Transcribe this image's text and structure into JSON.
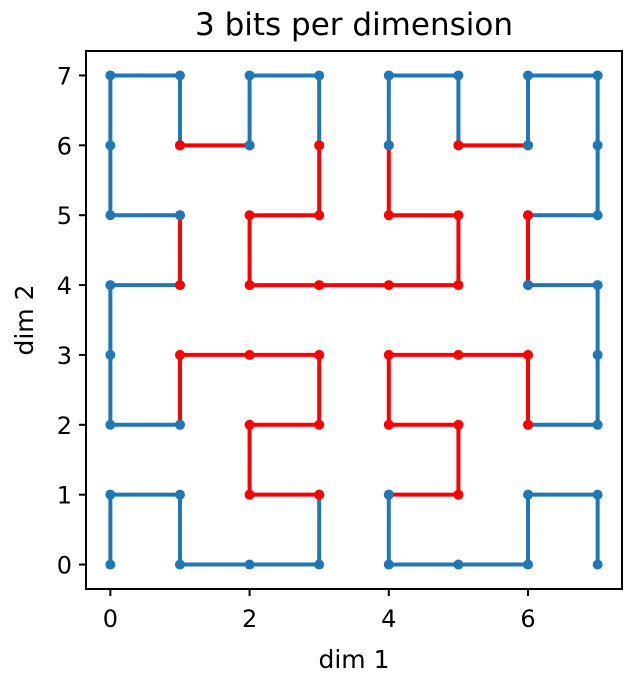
{
  "chart_data": {
    "type": "line",
    "title": "3 bits per dimension",
    "xlabel": "dim 1",
    "ylabel": "dim 2",
    "xlim": [
      -0.35,
      7.35
    ],
    "ylim": [
      -0.35,
      7.35
    ],
    "xticks": [
      0,
      2,
      4,
      6
    ],
    "yticks": [
      0,
      1,
      2,
      3,
      4,
      5,
      6,
      7
    ],
    "grid": false,
    "colors": {
      "blue": "#1f77b4",
      "red": "#ff0000"
    },
    "series": [
      {
        "color": "blue",
        "points": [
          [
            0,
            0
          ],
          [
            0,
            1
          ],
          [
            1,
            1
          ],
          [
            1,
            0
          ],
          [
            2,
            0
          ],
          [
            3,
            0
          ],
          [
            3,
            1
          ]
        ]
      },
      {
        "color": "red",
        "points": [
          [
            3,
            1
          ],
          [
            2,
            1
          ],
          [
            2,
            2
          ],
          [
            3,
            2
          ],
          [
            3,
            3
          ],
          [
            2,
            3
          ],
          [
            1,
            3
          ],
          [
            1,
            2
          ]
        ]
      },
      {
        "color": "blue",
        "points": [
          [
            1,
            2
          ],
          [
            0,
            2
          ],
          [
            0,
            3
          ],
          [
            0,
            4
          ],
          [
            1,
            4
          ]
        ]
      },
      {
        "color": "red",
        "points": [
          [
            1,
            4
          ],
          [
            1,
            5
          ]
        ]
      },
      {
        "color": "blue",
        "points": [
          [
            1,
            5
          ],
          [
            0,
            5
          ],
          [
            0,
            6
          ],
          [
            0,
            7
          ],
          [
            1,
            7
          ],
          [
            1,
            6
          ]
        ]
      },
      {
        "color": "red",
        "points": [
          [
            1,
            6
          ],
          [
            2,
            6
          ]
        ]
      },
      {
        "color": "blue",
        "points": [
          [
            2,
            6
          ],
          [
            2,
            7
          ],
          [
            3,
            7
          ],
          [
            3,
            6
          ]
        ]
      },
      {
        "color": "red",
        "points": [
          [
            3,
            6
          ],
          [
            3,
            5
          ],
          [
            2,
            5
          ],
          [
            2,
            4
          ],
          [
            3,
            4
          ],
          [
            4,
            4
          ],
          [
            5,
            4
          ],
          [
            5,
            5
          ],
          [
            4,
            5
          ],
          [
            4,
            6
          ]
        ]
      },
      {
        "color": "blue",
        "points": [
          [
            4,
            6
          ],
          [
            4,
            7
          ],
          [
            5,
            7
          ],
          [
            5,
            6
          ]
        ]
      },
      {
        "color": "red",
        "points": [
          [
            5,
            6
          ],
          [
            6,
            6
          ]
        ]
      },
      {
        "color": "blue",
        "points": [
          [
            6,
            6
          ],
          [
            6,
            7
          ],
          [
            7,
            7
          ],
          [
            7,
            6
          ],
          [
            7,
            5
          ],
          [
            6,
            5
          ]
        ]
      },
      {
        "color": "red",
        "points": [
          [
            6,
            5
          ],
          [
            6,
            4
          ]
        ]
      },
      {
        "color": "blue",
        "points": [
          [
            6,
            4
          ],
          [
            7,
            4
          ],
          [
            7,
            3
          ],
          [
            7,
            2
          ],
          [
            6,
            2
          ]
        ]
      },
      {
        "color": "red",
        "points": [
          [
            6,
            2
          ],
          [
            6,
            3
          ],
          [
            5,
            3
          ],
          [
            4,
            3
          ],
          [
            4,
            2
          ],
          [
            5,
            2
          ],
          [
            5,
            1
          ],
          [
            4,
            1
          ]
        ]
      },
      {
        "color": "blue",
        "points": [
          [
            4,
            1
          ],
          [
            4,
            0
          ],
          [
            5,
            0
          ],
          [
            6,
            0
          ],
          [
            6,
            1
          ],
          [
            7,
            1
          ],
          [
            7,
            0
          ]
        ]
      }
    ]
  }
}
